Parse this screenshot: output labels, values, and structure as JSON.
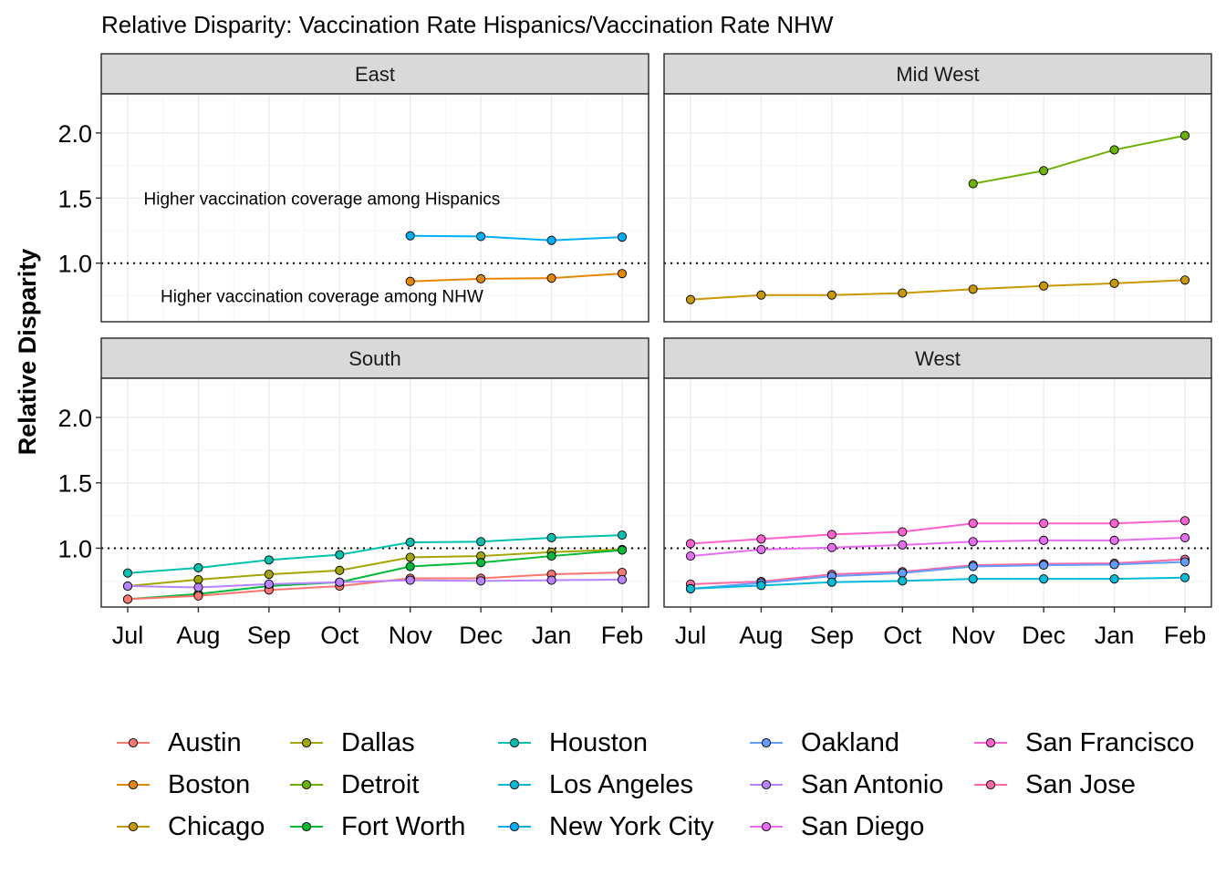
{
  "chart_data": {
    "type": "line",
    "title": "Relative Disparity: Vaccination Rate Hispanics/Vaccination Rate NHW",
    "ylabel": "Relative Disparity",
    "xlabel": "",
    "categories": [
      "Jul",
      "Aug",
      "Sep",
      "Oct",
      "Nov",
      "Dec",
      "Jan",
      "Feb"
    ],
    "ylim": [
      0.55,
      2.3
    ],
    "yticks": [
      1.0,
      1.5,
      2.0
    ],
    "ytick_labels": [
      "1.0",
      "1.5",
      "2.0"
    ],
    "reference_line": 1.0,
    "grid": true,
    "legend_position": "bottom",
    "legend": [
      {
        "name": "Austin",
        "color": "#F8766D"
      },
      {
        "name": "Boston",
        "color": "#E58700"
      },
      {
        "name": "Chicago",
        "color": "#C99800"
      },
      {
        "name": "Dallas",
        "color": "#A3A500"
      },
      {
        "name": "Detroit",
        "color": "#6BB100"
      },
      {
        "name": "Fort Worth",
        "color": "#00BA38"
      },
      {
        "name": "Houston",
        "color": "#00C0AF"
      },
      {
        "name": "Los Angeles",
        "color": "#00BCD8"
      },
      {
        "name": "New York City",
        "color": "#00B0F6"
      },
      {
        "name": "Oakland",
        "color": "#619CFF"
      },
      {
        "name": "San Antonio",
        "color": "#B983FF"
      },
      {
        "name": "San Diego",
        "color": "#E76BF3"
      },
      {
        "name": "San Francisco",
        "color": "#FD61D1"
      },
      {
        "name": "San Jose",
        "color": "#FF67A4"
      }
    ],
    "panels": [
      {
        "name": "East",
        "annotations": [
          "Higher vaccination coverage among Hispanics",
          "Higher vaccination coverage among NHW"
        ],
        "series": [
          {
            "name": "New York City",
            "values": [
              null,
              null,
              null,
              null,
              1.21,
              1.205,
              1.175,
              1.2
            ]
          },
          {
            "name": "Boston",
            "values": [
              null,
              null,
              null,
              null,
              0.86,
              0.88,
              0.885,
              0.92
            ]
          }
        ]
      },
      {
        "name": "Mid West",
        "annotations": [],
        "series": [
          {
            "name": "Detroit",
            "values": [
              null,
              null,
              null,
              null,
              1.61,
              1.71,
              1.87,
              1.98
            ]
          },
          {
            "name": "Chicago",
            "values": [
              0.72,
              0.755,
              0.755,
              0.77,
              0.8,
              0.825,
              0.845,
              0.87
            ]
          }
        ]
      },
      {
        "name": "South",
        "annotations": [],
        "series": [
          {
            "name": "Houston",
            "values": [
              0.81,
              0.85,
              0.91,
              0.95,
              1.045,
              1.05,
              1.08,
              1.1
            ]
          },
          {
            "name": "Dallas",
            "values": [
              0.71,
              0.76,
              0.8,
              0.83,
              0.93,
              0.94,
              0.97,
              0.99
            ]
          },
          {
            "name": "Fort Worth",
            "values": [
              0.61,
              0.65,
              0.71,
              0.74,
              0.86,
              0.89,
              0.94,
              0.985
            ]
          },
          {
            "name": "Austin",
            "values": [
              0.61,
              0.635,
              0.68,
              0.71,
              0.77,
              0.77,
              0.8,
              0.815
            ]
          },
          {
            "name": "San Antonio",
            "values": [
              0.71,
              0.7,
              0.725,
              0.74,
              0.755,
              0.75,
              0.755,
              0.76
            ]
          }
        ]
      },
      {
        "name": "West",
        "annotations": [],
        "series": [
          {
            "name": "San Francisco",
            "values": [
              1.035,
              1.07,
              1.105,
              1.125,
              1.19,
              1.19,
              1.19,
              1.21
            ]
          },
          {
            "name": "San Diego",
            "values": [
              0.94,
              0.99,
              1.005,
              1.025,
              1.05,
              1.06,
              1.06,
              1.08
            ]
          },
          {
            "name": "San Jose",
            "values": [
              0.725,
              0.745,
              0.8,
              0.82,
              0.87,
              0.88,
              0.885,
              0.915
            ]
          },
          {
            "name": "Oakland",
            "values": [
              0.69,
              0.735,
              0.785,
              0.81,
              0.86,
              0.87,
              0.875,
              0.895
            ]
          },
          {
            "name": "Los Angeles",
            "values": [
              0.69,
              0.715,
              0.74,
              0.75,
              0.765,
              0.765,
              0.765,
              0.775
            ]
          }
        ]
      }
    ]
  }
}
